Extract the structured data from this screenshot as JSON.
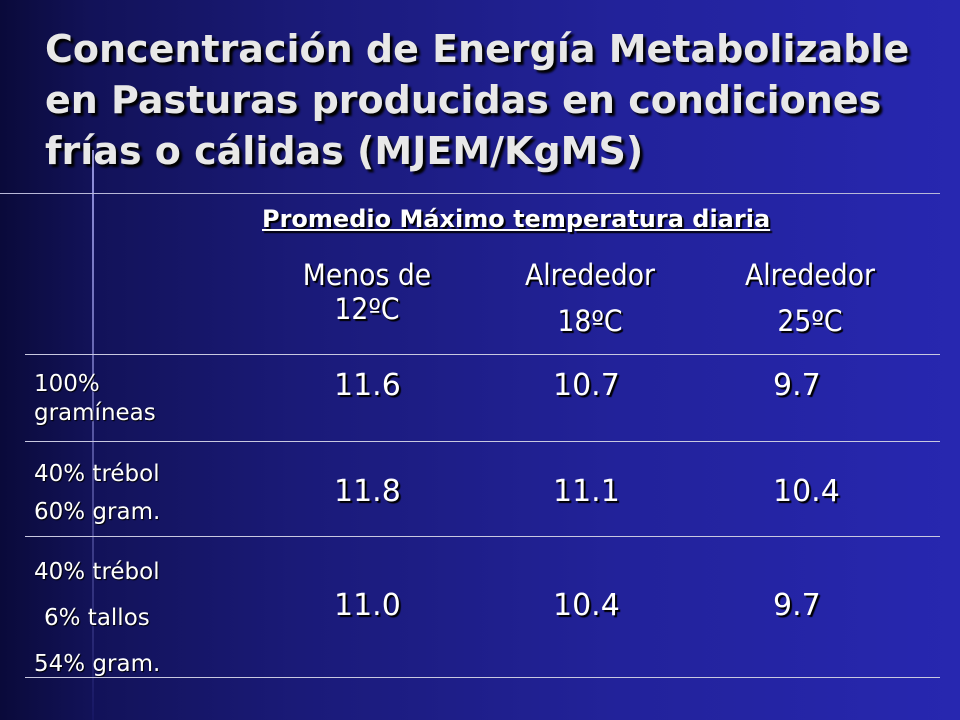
{
  "slide": {
    "title": "Concentración de Energía Metabolizable en Pasturas producidas en condiciones frías o cálidas (MJEM/KgMS)"
  },
  "table": {
    "group_header": "Promedio Máximo temperatura diaria",
    "columns": [
      {
        "line1": "Menos de",
        "line2": "12ºC"
      },
      {
        "line1": "Alrededor",
        "line2": "18ºC"
      },
      {
        "line1": "Alrededor",
        "line2": "25ºC"
      }
    ],
    "rows": [
      {
        "label_lines": [
          "100%",
          "gramíneas"
        ],
        "values": [
          "11.6",
          "10.7",
          "9.7"
        ]
      },
      {
        "label_lines": [
          "40% trébol",
          "60% gram."
        ],
        "values": [
          "11.8",
          "11.1",
          "10.4"
        ]
      },
      {
        "label_lines": [
          "40% trébol",
          "6% tallos",
          "54% gram."
        ],
        "values": [
          "11.0",
          "10.4",
          "9.7"
        ]
      }
    ]
  }
}
